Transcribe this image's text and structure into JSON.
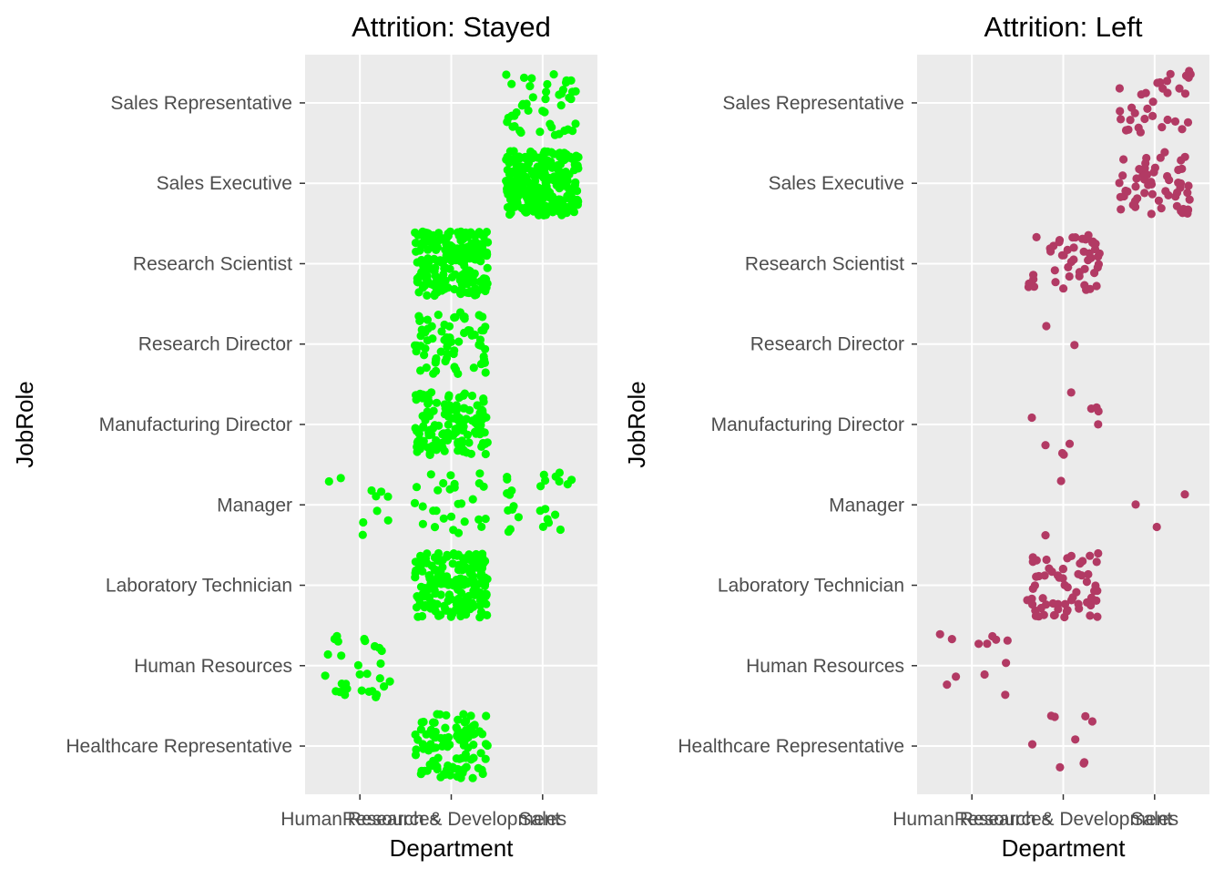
{
  "chart_data": [
    {
      "type": "scatter",
      "jitter": true,
      "title": "Attrition: Stayed",
      "xlabel": "Department",
      "ylabel": "JobRole",
      "categories_x": [
        "Human Resources",
        "Research & Development",
        "Sales"
      ],
      "categories_y": [
        "Healthcare Representative",
        "Human Resources",
        "Laboratory Technician",
        "Manager",
        "Manufacturing Director",
        "Research Director",
        "Research Scientist",
        "Sales Executive",
        "Sales Representative"
      ],
      "point_color": "#00ff00",
      "panel_background": "#ebebeb",
      "grid": true,
      "groups": [
        {
          "x": "Research & Development",
          "y": "Healthcare Representative",
          "count": 110
        },
        {
          "x": "Human Resources",
          "y": "Human Resources",
          "count": 30
        },
        {
          "x": "Research & Development",
          "y": "Laboratory Technician",
          "count": 190
        },
        {
          "x": "Human Resources",
          "y": "Manager",
          "count": 10
        },
        {
          "x": "Research & Development",
          "y": "Manager",
          "count": 28
        },
        {
          "x": "Sales",
          "y": "Manager",
          "count": 26
        },
        {
          "x": "Research & Development",
          "y": "Manufacturing Director",
          "count": 130
        },
        {
          "x": "Research & Development",
          "y": "Research Director",
          "count": 70
        },
        {
          "x": "Research & Development",
          "y": "Research Scientist",
          "count": 220
        },
        {
          "x": "Sales",
          "y": "Sales Executive",
          "count": 260
        },
        {
          "x": "Sales",
          "y": "Sales Representative",
          "count": 45
        }
      ]
    },
    {
      "type": "scatter",
      "jitter": true,
      "title": "Attrition: Left",
      "xlabel": "Department",
      "ylabel": "JobRole",
      "categories_x": [
        "Human Resources",
        "Research & Development",
        "Sales"
      ],
      "categories_y": [
        "Healthcare Representative",
        "Human Resources",
        "Laboratory Technician",
        "Manager",
        "Manufacturing Director",
        "Research Director",
        "Research Scientist",
        "Sales Executive",
        "Sales Representative"
      ],
      "point_color": "#b23a64",
      "panel_background": "#ebebeb",
      "grid": true,
      "groups": [
        {
          "x": "Research & Development",
          "y": "Healthcare Representative",
          "count": 9
        },
        {
          "x": "Human Resources",
          "y": "Human Resources",
          "count": 12
        },
        {
          "x": "Research & Development",
          "y": "Laboratory Technician",
          "count": 62
        },
        {
          "x": "Research & Development",
          "y": "Manager",
          "count": 2
        },
        {
          "x": "Sales",
          "y": "Manager",
          "count": 3
        },
        {
          "x": "Research & Development",
          "y": "Manufacturing Director",
          "count": 10
        },
        {
          "x": "Research & Development",
          "y": "Research Director",
          "count": 2
        },
        {
          "x": "Research & Development",
          "y": "Research Scientist",
          "count": 47
        },
        {
          "x": "Sales",
          "y": "Sales Executive",
          "count": 57
        },
        {
          "x": "Sales",
          "y": "Sales Representative",
          "count": 33
        }
      ]
    }
  ]
}
